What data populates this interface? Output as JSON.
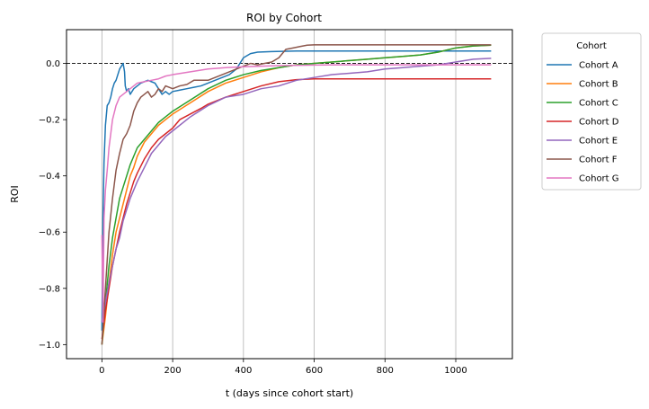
{
  "chart_data": {
    "type": "line",
    "title": "ROI by Cohort",
    "xlabel": "t (days since cohort start)",
    "ylabel": "ROI",
    "xlim": [
      -100,
      1160
    ],
    "ylim": [
      -1.05,
      0.12
    ],
    "xticks": [
      0,
      200,
      400,
      600,
      800,
      1000
    ],
    "yticks": [
      -1.0,
      -0.8,
      -0.6,
      -0.4,
      -0.2,
      0.0
    ],
    "ytick_labels": [
      "−1.0",
      "−0.8",
      "−0.6",
      "−0.4",
      "−0.2",
      "0.0"
    ],
    "grid": "vertical",
    "reference_line": {
      "y": 0.0,
      "style": "dashed"
    },
    "legend": {
      "title": "Cohort",
      "placement": "outside-right"
    },
    "series": [
      {
        "name": "Cohort A",
        "color": "#1f77b4",
        "points": [
          [
            0,
            -0.95
          ],
          [
            3,
            -0.55
          ],
          [
            6,
            -0.35
          ],
          [
            10,
            -0.22
          ],
          [
            15,
            -0.15
          ],
          [
            20,
            -0.14
          ],
          [
            25,
            -0.12
          ],
          [
            30,
            -0.09
          ],
          [
            35,
            -0.07
          ],
          [
            40,
            -0.06
          ],
          [
            45,
            -0.04
          ],
          [
            50,
            -0.02
          ],
          [
            55,
            -0.01
          ],
          [
            60,
            0.0
          ],
          [
            64,
            -0.03
          ],
          [
            66,
            -0.08
          ],
          [
            70,
            -0.1
          ],
          [
            75,
            -0.09
          ],
          [
            80,
            -0.11
          ],
          [
            90,
            -0.09
          ],
          [
            100,
            -0.08
          ],
          [
            110,
            -0.07
          ],
          [
            120,
            -0.065
          ],
          [
            130,
            -0.06
          ],
          [
            140,
            -0.065
          ],
          [
            150,
            -0.07
          ],
          [
            160,
            -0.09
          ],
          [
            170,
            -0.11
          ],
          [
            180,
            -0.1
          ],
          [
            190,
            -0.11
          ],
          [
            200,
            -0.1
          ],
          [
            220,
            -0.095
          ],
          [
            240,
            -0.09
          ],
          [
            260,
            -0.085
          ],
          [
            280,
            -0.08
          ],
          [
            300,
            -0.07
          ],
          [
            320,
            -0.06
          ],
          [
            340,
            -0.05
          ],
          [
            360,
            -0.04
          ],
          [
            380,
            -0.02
          ],
          [
            400,
            0.02
          ],
          [
            420,
            0.035
          ],
          [
            440,
            0.04
          ],
          [
            480,
            0.042
          ],
          [
            550,
            0.044
          ],
          [
            700,
            0.044
          ],
          [
            900,
            0.044
          ],
          [
            1100,
            0.044
          ]
        ]
      },
      {
        "name": "Cohort B",
        "color": "#ff7f0e",
        "points": [
          [
            0,
            -1.0
          ],
          [
            10,
            -0.9
          ],
          [
            20,
            -0.78
          ],
          [
            30,
            -0.68
          ],
          [
            40,
            -0.6
          ],
          [
            50,
            -0.55
          ],
          [
            60,
            -0.5
          ],
          [
            70,
            -0.45
          ],
          [
            80,
            -0.4
          ],
          [
            90,
            -0.37
          ],
          [
            100,
            -0.33
          ],
          [
            120,
            -0.28
          ],
          [
            140,
            -0.25
          ],
          [
            160,
            -0.22
          ],
          [
            180,
            -0.2
          ],
          [
            200,
            -0.18
          ],
          [
            250,
            -0.14
          ],
          [
            300,
            -0.1
          ],
          [
            350,
            -0.07
          ],
          [
            400,
            -0.05
          ],
          [
            450,
            -0.03
          ],
          [
            500,
            -0.015
          ],
          [
            550,
            -0.005
          ],
          [
            600,
            0.0
          ],
          [
            650,
            0.005
          ],
          [
            700,
            0.01
          ],
          [
            750,
            0.015
          ],
          [
            800,
            0.02
          ],
          [
            850,
            0.025
          ],
          [
            900,
            0.03
          ],
          [
            950,
            0.04
          ],
          [
            1000,
            0.055
          ],
          [
            1050,
            0.062
          ],
          [
            1100,
            0.065
          ]
        ]
      },
      {
        "name": "Cohort C",
        "color": "#2ca02c",
        "points": [
          [
            0,
            -1.0
          ],
          [
            10,
            -0.85
          ],
          [
            20,
            -0.72
          ],
          [
            30,
            -0.62
          ],
          [
            40,
            -0.55
          ],
          [
            50,
            -0.48
          ],
          [
            60,
            -0.44
          ],
          [
            70,
            -0.4
          ],
          [
            80,
            -0.36
          ],
          [
            90,
            -0.33
          ],
          [
            100,
            -0.3
          ],
          [
            120,
            -0.27
          ],
          [
            140,
            -0.24
          ],
          [
            160,
            -0.21
          ],
          [
            180,
            -0.19
          ],
          [
            200,
            -0.17
          ],
          [
            250,
            -0.13
          ],
          [
            300,
            -0.09
          ],
          [
            350,
            -0.06
          ],
          [
            400,
            -0.04
          ],
          [
            450,
            -0.025
          ],
          [
            500,
            -0.015
          ],
          [
            550,
            -0.005
          ],
          [
            600,
            0.0
          ],
          [
            650,
            0.005
          ],
          [
            700,
            0.01
          ],
          [
            750,
            0.015
          ],
          [
            800,
            0.02
          ],
          [
            850,
            0.025
          ],
          [
            900,
            0.03
          ],
          [
            950,
            0.04
          ],
          [
            1000,
            0.055
          ],
          [
            1050,
            0.062
          ],
          [
            1100,
            0.065
          ]
        ]
      },
      {
        "name": "Cohort D",
        "color": "#d62728",
        "points": [
          [
            0,
            -0.98
          ],
          [
            10,
            -0.88
          ],
          [
            20,
            -0.8
          ],
          [
            30,
            -0.72
          ],
          [
            40,
            -0.66
          ],
          [
            50,
            -0.6
          ],
          [
            60,
            -0.55
          ],
          [
            70,
            -0.5
          ],
          [
            80,
            -0.46
          ],
          [
            90,
            -0.42
          ],
          [
            100,
            -0.39
          ],
          [
            120,
            -0.34
          ],
          [
            140,
            -0.3
          ],
          [
            160,
            -0.27
          ],
          [
            180,
            -0.25
          ],
          [
            200,
            -0.23
          ],
          [
            220,
            -0.2
          ],
          [
            250,
            -0.18
          ],
          [
            280,
            -0.16
          ],
          [
            300,
            -0.145
          ],
          [
            350,
            -0.12
          ],
          [
            400,
            -0.1
          ],
          [
            450,
            -0.08
          ],
          [
            500,
            -0.065
          ],
          [
            550,
            -0.058
          ],
          [
            600,
            -0.055
          ],
          [
            700,
            -0.055
          ],
          [
            900,
            -0.055
          ],
          [
            1100,
            -0.055
          ]
        ]
      },
      {
        "name": "Cohort E",
        "color": "#9467bd",
        "points": [
          [
            0,
            -0.92
          ],
          [
            10,
            -0.85
          ],
          [
            20,
            -0.78
          ],
          [
            30,
            -0.72
          ],
          [
            40,
            -0.66
          ],
          [
            50,
            -0.62
          ],
          [
            60,
            -0.56
          ],
          [
            70,
            -0.52
          ],
          [
            80,
            -0.48
          ],
          [
            90,
            -0.45
          ],
          [
            100,
            -0.42
          ],
          [
            120,
            -0.37
          ],
          [
            140,
            -0.32
          ],
          [
            160,
            -0.29
          ],
          [
            180,
            -0.26
          ],
          [
            200,
            -0.24
          ],
          [
            250,
            -0.19
          ],
          [
            300,
            -0.15
          ],
          [
            350,
            -0.12
          ],
          [
            400,
            -0.11
          ],
          [
            450,
            -0.09
          ],
          [
            500,
            -0.08
          ],
          [
            550,
            -0.06
          ],
          [
            600,
            -0.05
          ],
          [
            650,
            -0.04
          ],
          [
            700,
            -0.035
          ],
          [
            750,
            -0.03
          ],
          [
            800,
            -0.02
          ],
          [
            850,
            -0.015
          ],
          [
            900,
            -0.01
          ],
          [
            950,
            -0.005
          ],
          [
            1000,
            0.005
          ],
          [
            1050,
            0.015
          ],
          [
            1100,
            0.018
          ]
        ]
      },
      {
        "name": "Cohort F",
        "color": "#8c564b",
        "points": [
          [
            0,
            -1.0
          ],
          [
            10,
            -0.8
          ],
          [
            20,
            -0.6
          ],
          [
            30,
            -0.48
          ],
          [
            40,
            -0.38
          ],
          [
            50,
            -0.32
          ],
          [
            60,
            -0.27
          ],
          [
            70,
            -0.25
          ],
          [
            80,
            -0.22
          ],
          [
            90,
            -0.17
          ],
          [
            100,
            -0.14
          ],
          [
            110,
            -0.12
          ],
          [
            120,
            -0.11
          ],
          [
            130,
            -0.1
          ],
          [
            140,
            -0.12
          ],
          [
            150,
            -0.11
          ],
          [
            160,
            -0.09
          ],
          [
            170,
            -0.1
          ],
          [
            180,
            -0.08
          ],
          [
            200,
            -0.09
          ],
          [
            220,
            -0.08
          ],
          [
            240,
            -0.075
          ],
          [
            260,
            -0.06
          ],
          [
            280,
            -0.06
          ],
          [
            300,
            -0.06
          ],
          [
            320,
            -0.05
          ],
          [
            340,
            -0.04
          ],
          [
            360,
            -0.03
          ],
          [
            380,
            -0.02
          ],
          [
            400,
            -0.01
          ],
          [
            420,
            0.0
          ],
          [
            440,
            -0.005
          ],
          [
            460,
            0.0
          ],
          [
            480,
            0.005
          ],
          [
            500,
            0.02
          ],
          [
            520,
            0.05
          ],
          [
            540,
            0.055
          ],
          [
            560,
            0.06
          ],
          [
            580,
            0.065
          ],
          [
            600,
            0.066
          ],
          [
            800,
            0.066
          ],
          [
            1000,
            0.066
          ],
          [
            1100,
            0.066
          ]
        ]
      },
      {
        "name": "Cohort G",
        "color": "#e377c2",
        "points": [
          [
            0,
            -0.61
          ],
          [
            3,
            -0.92
          ],
          [
            6,
            -0.55
          ],
          [
            10,
            -0.45
          ],
          [
            15,
            -0.38
          ],
          [
            20,
            -0.3
          ],
          [
            25,
            -0.25
          ],
          [
            30,
            -0.2
          ],
          [
            40,
            -0.15
          ],
          [
            50,
            -0.12
          ],
          [
            60,
            -0.11
          ],
          [
            70,
            -0.1
          ],
          [
            80,
            -0.09
          ],
          [
            90,
            -0.08
          ],
          [
            100,
            -0.07
          ],
          [
            120,
            -0.065
          ],
          [
            140,
            -0.06
          ],
          [
            160,
            -0.055
          ],
          [
            180,
            -0.045
          ],
          [
            200,
            -0.04
          ],
          [
            250,
            -0.03
          ],
          [
            300,
            -0.02
          ],
          [
            350,
            -0.015
          ],
          [
            400,
            -0.012
          ],
          [
            450,
            -0.01
          ],
          [
            500,
            -0.008
          ],
          [
            600,
            -0.006
          ],
          [
            700,
            -0.005
          ],
          [
            800,
            -0.005
          ],
          [
            900,
            -0.005
          ],
          [
            1000,
            -0.005
          ],
          [
            1100,
            -0.005
          ]
        ]
      }
    ]
  }
}
